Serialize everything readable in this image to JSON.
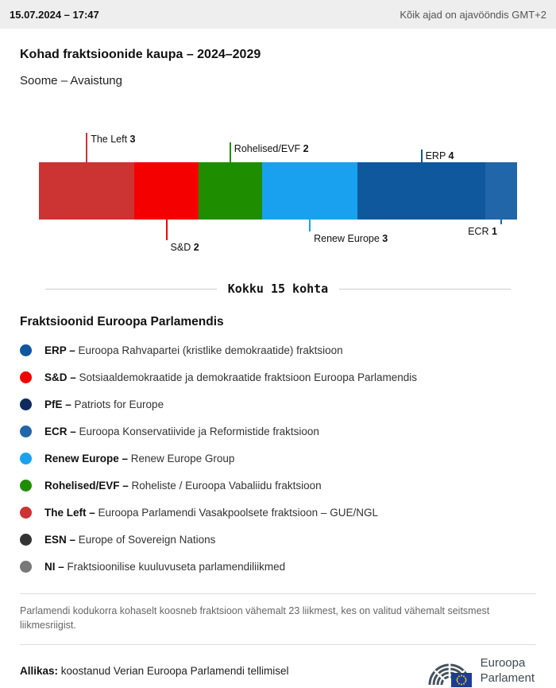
{
  "header": {
    "datetime": "15.07.2024 – 17:47",
    "timezone": "Kõik ajad on ajavööndis GMT+2"
  },
  "title": "Kohad fraktsioonide kaupa – 2024–2029",
  "subtitle": "Soome – Avaistung",
  "chart_data": {
    "type": "bar",
    "stacked": true,
    "orientation": "horizontal",
    "total_seats": 15,
    "total_label": "Kokku 15 kohta",
    "segments": [
      {
        "name": "The Left",
        "seats": 3,
        "color": "#cc3333",
        "label_position": "top",
        "tick_len": 37,
        "label_align": "left"
      },
      {
        "name": "S&D",
        "seats": 2,
        "color": "#f40000",
        "label_position": "bottom",
        "tick_len": 26,
        "label_align": "left"
      },
      {
        "name": "Rohelised/EVF",
        "seats": 2,
        "color": "#1e8e00",
        "label_position": "top",
        "tick_len": 25,
        "label_align": "left"
      },
      {
        "name": "Renew Europe",
        "seats": 3,
        "color": "#19a1f0",
        "label_position": "bottom",
        "tick_len": 15,
        "label_align": "left"
      },
      {
        "name": "ERP",
        "seats": 4,
        "color": "#10589e",
        "label_position": "top",
        "tick_len": 16,
        "label_align": "left"
      },
      {
        "name": "ECR",
        "seats": 1,
        "color": "#2166a8",
        "label_position": "bottom",
        "tick_len": 6,
        "label_align": "right"
      }
    ]
  },
  "legend": {
    "heading": "Fraktsioonid Euroopa Parlamendis",
    "items": [
      {
        "abbr": "ERP –",
        "desc": "Euroopa Rahvapartei (kristlike demokraatide) fraktsioon",
        "color": "#10589e"
      },
      {
        "abbr": "S&D –",
        "desc": "Sotsiaaldemokraatide ja demokraatide fraktsioon Euroopa Parlamendis",
        "color": "#f40000"
      },
      {
        "abbr": "PfE –",
        "desc": "Patriots for Europe",
        "color": "#112a5e"
      },
      {
        "abbr": "ECR –",
        "desc": "Euroopa Konservatiivide ja Reformistide fraktsioon",
        "color": "#2166a8"
      },
      {
        "abbr": "Renew Europe –",
        "desc": "Renew Europe Group",
        "color": "#19a1f0"
      },
      {
        "abbr": "Rohelised/EVF –",
        "desc": "Roheliste / Euroopa Vabaliidu fraktsioon",
        "color": "#1e8e00"
      },
      {
        "abbr": "The Left –",
        "desc": "Euroopa Parlamendi Vasakpoolsete fraktsioon – GUE/NGL",
        "color": "#cc3333"
      },
      {
        "abbr": "ESN –",
        "desc": "Europe of Sovereign Nations",
        "color": "#333333"
      },
      {
        "abbr": "NI –",
        "desc": "Fraktsioonilise kuuluvuseta parlamendiliikmed",
        "color": "#787878"
      }
    ]
  },
  "footnote": "Parlamendi kodukorra kohaselt koosneb fraktsioon vähemalt 23 liikmest, kes on valitud vähemalt seitsmest liikmesriigist.",
  "source": {
    "label": "Allikas:",
    "text": " koostanud Verian Euroopa Parlamendi tellimisel"
  },
  "logo": {
    "line1": "Euroopa",
    "line2": "Parlament"
  }
}
